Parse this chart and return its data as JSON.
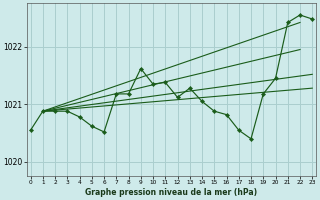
{
  "xlabel": "Graphe pression niveau de la mer (hPa)",
  "background_color": "#ceeaea",
  "grid_color": "#aacece",
  "line_color": "#1a5c1a",
  "marker_color": "#1a5c1a",
  "ylim": [
    1019.75,
    1022.75
  ],
  "yticks": [
    1020,
    1021,
    1022
  ],
  "xlim": [
    -0.3,
    23.3
  ],
  "xticks": [
    0,
    1,
    2,
    3,
    4,
    5,
    6,
    7,
    8,
    9,
    10,
    11,
    12,
    13,
    14,
    15,
    16,
    17,
    18,
    19,
    20,
    21,
    22,
    23
  ],
  "series1_x": [
    0,
    1,
    2,
    3,
    4,
    5,
    6,
    7,
    8,
    9,
    10,
    11,
    12,
    13,
    14,
    15,
    16,
    17,
    18,
    19,
    20,
    21,
    22,
    23
  ],
  "series1_y": [
    1020.55,
    1020.88,
    1020.88,
    1020.88,
    1020.78,
    1020.62,
    1020.52,
    1021.18,
    1021.18,
    1021.62,
    1021.35,
    1021.38,
    1021.12,
    1021.28,
    1021.05,
    1020.88,
    1020.82,
    1020.55,
    1020.4,
    1021.18,
    1021.45,
    1022.42,
    1022.55,
    1022.48
  ],
  "trend1_x": [
    1,
    23
  ],
  "trend1_y": [
    1020.88,
    1021.28
  ],
  "trend2_x": [
    1,
    23
  ],
  "trend2_y": [
    1020.88,
    1021.52
  ],
  "trend3_x": [
    1,
    22
  ],
  "trend3_y": [
    1020.88,
    1021.95
  ],
  "trend4_x": [
    1,
    22
  ],
  "trend4_y": [
    1020.88,
    1022.42
  ],
  "xlabel_fontsize": 5.5,
  "xlabel_fontweight": "bold",
  "ytick_fontsize": 5.5,
  "xtick_fontsize": 4.2
}
